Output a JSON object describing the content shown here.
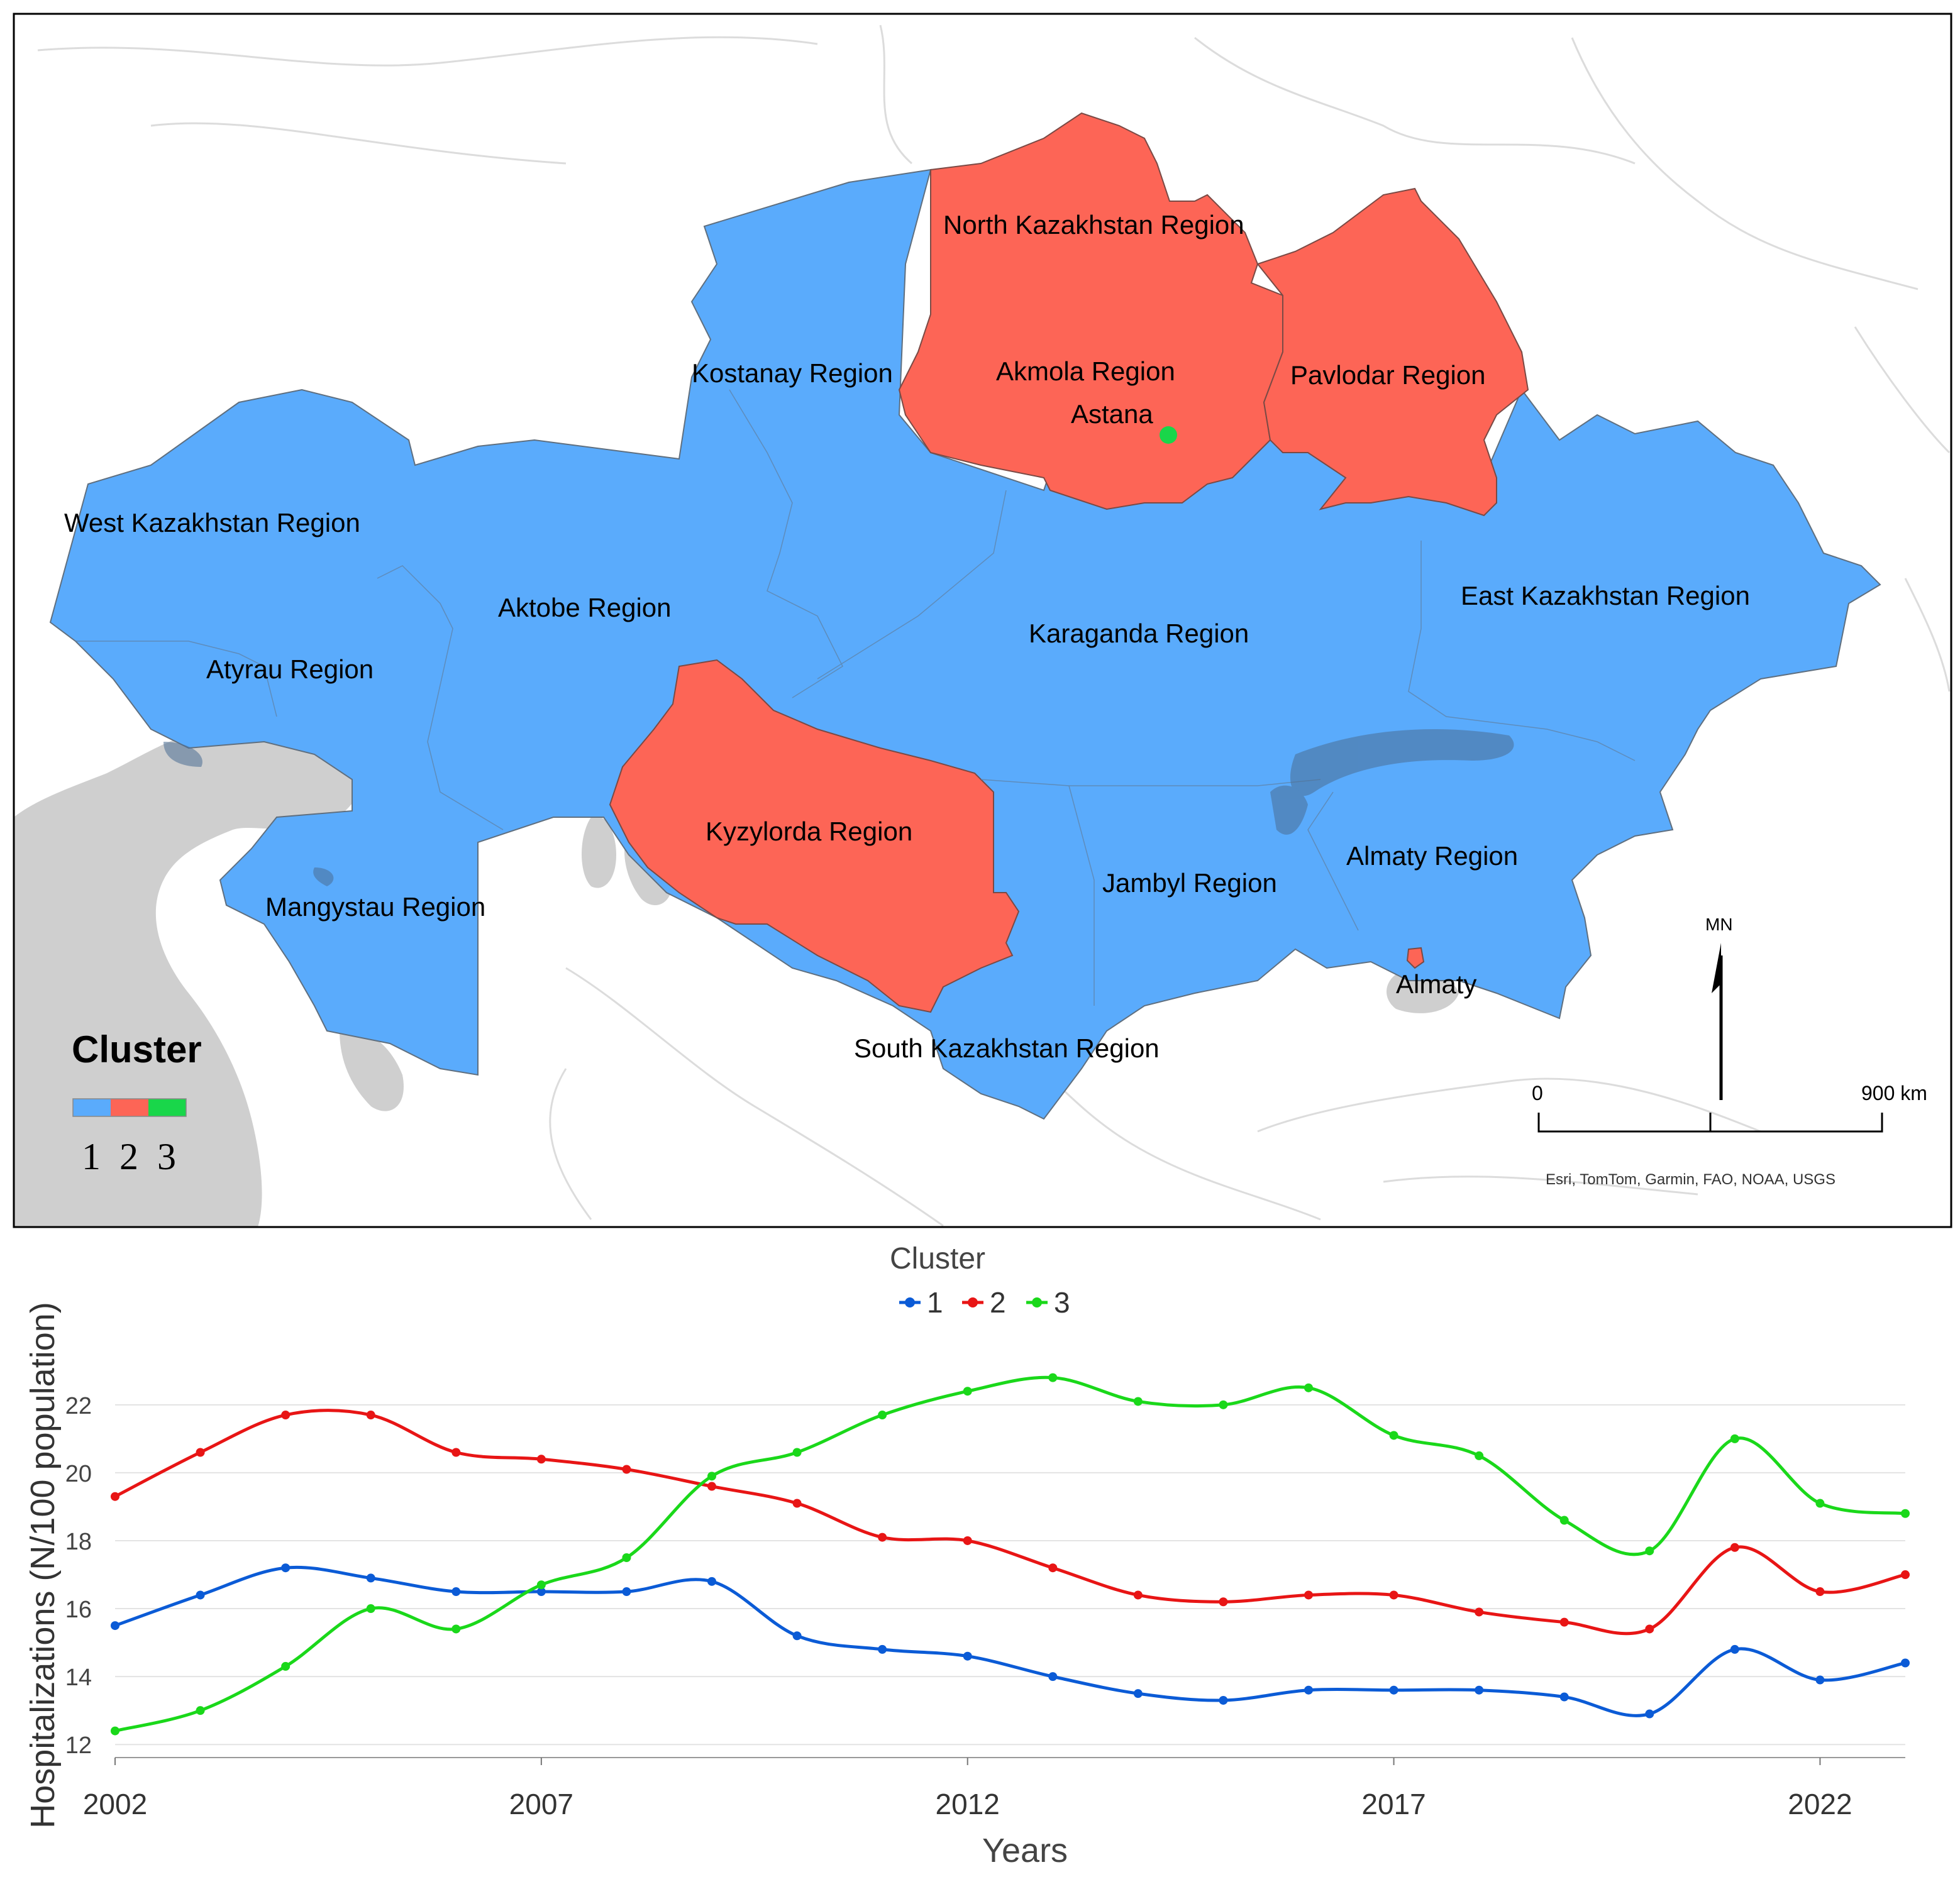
{
  "map": {
    "regions": [
      {
        "name": "North Kazakhstan Region",
        "cluster": 2
      },
      {
        "name": "Kostanay Region",
        "cluster": 1
      },
      {
        "name": "Akmola Region",
        "cluster": 2
      },
      {
        "name": "Astana",
        "cluster": 3
      },
      {
        "name": "Pavlodar Region",
        "cluster": 2
      },
      {
        "name": "West Kazakhstan Region",
        "cluster": 1
      },
      {
        "name": "Aktobe Region",
        "cluster": 1
      },
      {
        "name": "Karaganda Region",
        "cluster": 1
      },
      {
        "name": "East Kazakhstan Region",
        "cluster": 1
      },
      {
        "name": "Atyrau Region",
        "cluster": 1
      },
      {
        "name": "Kyzylorda Region",
        "cluster": 2
      },
      {
        "name": "Almaty Region",
        "cluster": 1
      },
      {
        "name": "Jambyl Region",
        "cluster": 1
      },
      {
        "name": "Mangystau Region",
        "cluster": 1
      },
      {
        "name": "Almaty",
        "cluster": 2
      },
      {
        "name": "South Kazakhstan Region",
        "cluster": 1
      }
    ],
    "legend": {
      "title": "Cluster",
      "items": [
        {
          "label": "1",
          "color": "#5aabfc"
        },
        {
          "label": "2",
          "color": "#fd6556"
        },
        {
          "label": "3",
          "color": "#19d64a"
        }
      ]
    },
    "north_arrow": "MN",
    "scale_start": "0",
    "scale_end": "900 km",
    "attribution": "Esri, TomTom, Garmin, FAO, NOAA, USGS"
  },
  "chart_data": {
    "type": "line",
    "legend_title": "Cluster",
    "xlabel": "Years",
    "ylabel": "Hospitalizations (N/100 population)",
    "x": [
      2002,
      2003,
      2004,
      2005,
      2006,
      2007,
      2008,
      2009,
      2010,
      2011,
      2012,
      2013,
      2014,
      2015,
      2016,
      2017,
      2018,
      2019,
      2020,
      2021,
      2022,
      2023
    ],
    "xticks": [
      "2002",
      "2007",
      "2012",
      "2017",
      "2022"
    ],
    "yticks": [
      "12",
      "14",
      "16",
      "18",
      "20",
      "22"
    ],
    "ylim": [
      11.8,
      23.2
    ],
    "series": [
      {
        "name": "1",
        "color": "#0b5bd6",
        "values": [
          15.5,
          16.4,
          17.2,
          16.9,
          16.5,
          16.5,
          16.5,
          16.8,
          15.2,
          14.8,
          14.6,
          14.0,
          13.5,
          13.3,
          13.6,
          13.6,
          13.6,
          13.4,
          12.9,
          14.8,
          13.9,
          14.4
        ]
      },
      {
        "name": "2",
        "color": "#e81515",
        "values": [
          19.3,
          20.6,
          21.7,
          21.7,
          20.6,
          20.4,
          20.1,
          19.6,
          19.1,
          18.1,
          18.0,
          17.2,
          16.4,
          16.2,
          16.4,
          16.4,
          15.9,
          15.6,
          15.4,
          17.8,
          16.5,
          17.0
        ]
      },
      {
        "name": "3",
        "color": "#1ad81a",
        "values": [
          12.4,
          13.0,
          14.3,
          16.0,
          15.4,
          16.7,
          17.5,
          19.9,
          20.6,
          21.7,
          22.4,
          22.8,
          22.1,
          22.0,
          22.5,
          21.1,
          20.5,
          18.6,
          17.7,
          21.0,
          19.1,
          18.8
        ]
      }
    ]
  }
}
